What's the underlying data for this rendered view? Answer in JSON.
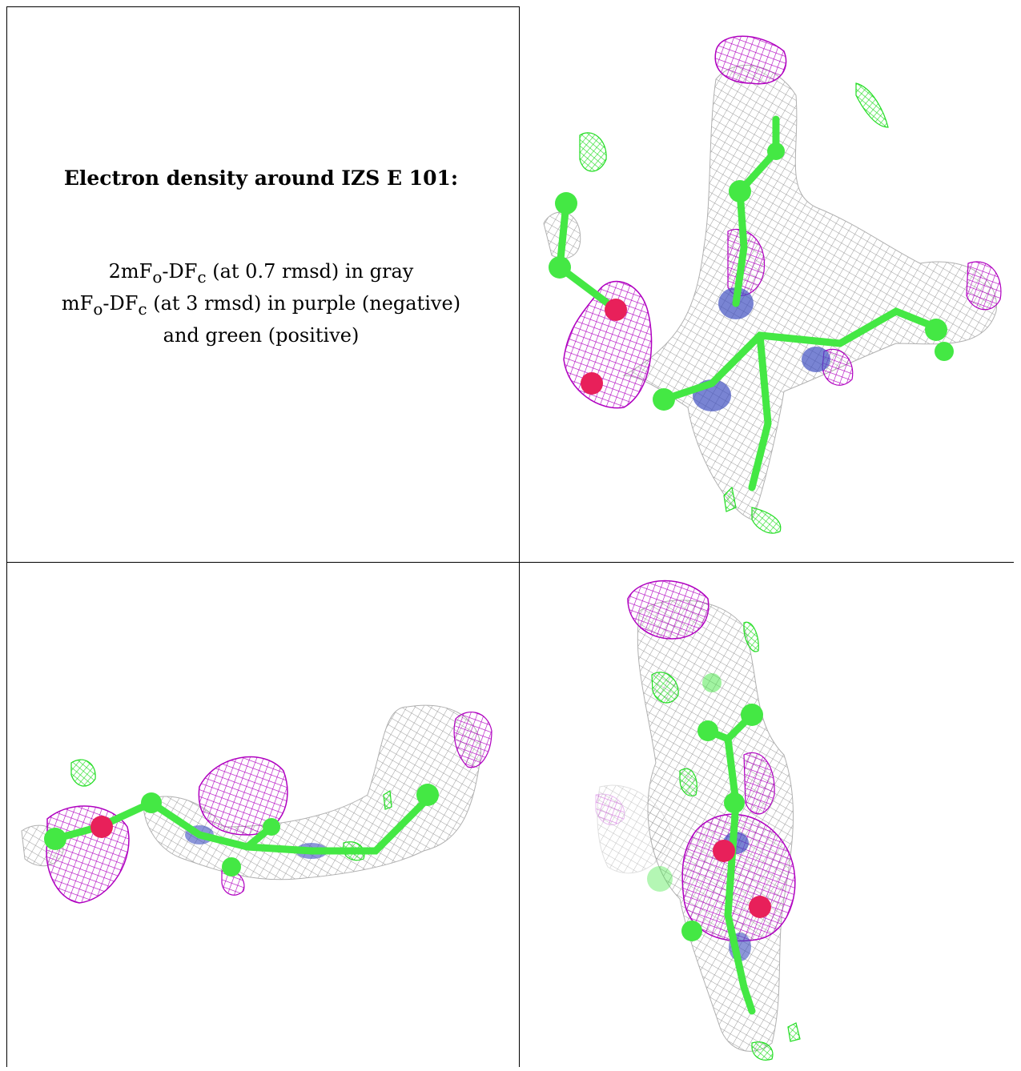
{
  "caption": {
    "title": "Electron density around IZS E 101:",
    "line1_prefix": "2mF",
    "line1_sub1": "o",
    "line1_mid": "-DF",
    "line1_sub2": "c",
    "line1_suffix": " (at 0.7 rmsd) in gray",
    "line2_prefix": "mF",
    "line2_sub1": "o",
    "line2_mid": "-DF",
    "line2_sub2": "c",
    "line2_suffix": " (at 3 rmsd) in purple (negative)",
    "line3": "and green (positive)"
  },
  "colors": {
    "mesh_gray": "#9a9a9a",
    "mesh_purple": "#b000c0",
    "mesh_green": "#22dd22",
    "atom_green": "#44e844",
    "atom_red": "#e8205a",
    "atom_blue": "#4050c0",
    "border": "#000000"
  },
  "views": [
    {
      "label": "view-top-right"
    },
    {
      "label": "view-bottom-left"
    },
    {
      "label": "view-bottom-right"
    }
  ]
}
